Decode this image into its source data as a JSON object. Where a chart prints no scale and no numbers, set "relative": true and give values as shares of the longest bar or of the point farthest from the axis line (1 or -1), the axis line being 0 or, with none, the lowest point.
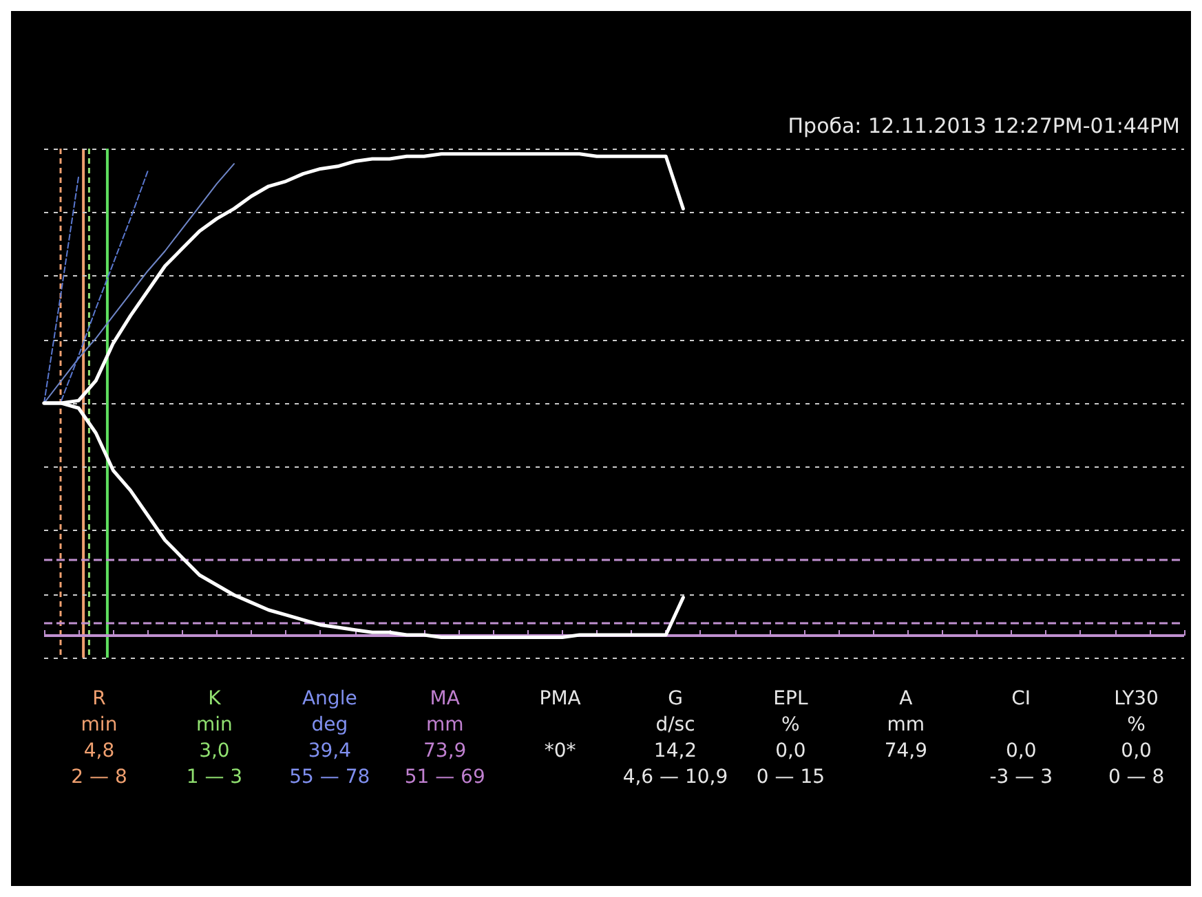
{
  "chart_data": {
    "type": "line",
    "title": "Проба: 12.11.2013 12:27PM-01:44PM",
    "relative": true,
    "grid": "y",
    "marker": "none",
    "categories": [
      null,
      null,
      null,
      null,
      null,
      null,
      null,
      null,
      null,
      null,
      null,
      null,
      null,
      null,
      null,
      null,
      null,
      null,
      null,
      null,
      null,
      null,
      null,
      null,
      null,
      null,
      null,
      null,
      null,
      null,
      null,
      null,
      null,
      null,
      null,
      null,
      null,
      null,
      null,
      null,
      null,
      null,
      null,
      null,
      null,
      null,
      null,
      null,
      null,
      null,
      null,
      null,
      null,
      null,
      null,
      null,
      null,
      null,
      null,
      null,
      null,
      null,
      null,
      null,
      null,
      null,
      null
    ],
    "series": [
      {
        "color": "#ffffff",
        "values": [
          0,
          0,
          0.01,
          0.09,
          0.24,
          0.35,
          0.45,
          0.55,
          0.62,
          0.69,
          0.74,
          0.78,
          0.83,
          0.87,
          0.89,
          0.92,
          0.94,
          0.95,
          0.97,
          0.98,
          0.98,
          0.99,
          0.99,
          1,
          1,
          1,
          1,
          1,
          1,
          1,
          1,
          1,
          0.99,
          0.99,
          0.99,
          0.99,
          0.99,
          0.78,
          null,
          null,
          null,
          null,
          null,
          null,
          null,
          null,
          null,
          null,
          null,
          null,
          null,
          null,
          null,
          null,
          null,
          null,
          null,
          null,
          null,
          null,
          null,
          null,
          null,
          null,
          null,
          null,
          null
        ]
      },
      {
        "color": "#ffffff",
        "values": [
          0,
          0,
          -0.02,
          -0.12,
          -0.27,
          -0.35,
          -0.45,
          -0.55,
          -0.62,
          -0.69,
          -0.73,
          -0.77,
          -0.8,
          -0.83,
          -0.85,
          -0.87,
          -0.89,
          -0.9,
          -0.91,
          -0.92,
          -0.92,
          -0.93,
          -0.93,
          -0.94,
          -0.94,
          -0.94,
          -0.94,
          -0.94,
          -0.94,
          -0.94,
          -0.94,
          -0.93,
          -0.93,
          -0.93,
          -0.93,
          -0.93,
          -0.93,
          -0.78,
          null,
          null,
          null,
          null,
          null,
          null,
          null,
          null,
          null,
          null,
          null,
          null,
          null,
          null,
          null,
          null,
          null,
          null,
          null,
          null,
          null,
          null,
          null,
          null,
          null,
          null,
          null,
          null,
          null
        ]
      },
      {
        "color": "#6f86c8",
        "line_style": "solid",
        "values": [
          0,
          0.09,
          0.18,
          0.26,
          0.35,
          0.44,
          0.53,
          0.61,
          0.7,
          0.79,
          0.88,
          0.96,
          null,
          null,
          null,
          null,
          null,
          null,
          null,
          null,
          null,
          null,
          null,
          null,
          null,
          null,
          null,
          null,
          null,
          null,
          null,
          null,
          null,
          null,
          null,
          null,
          null,
          null,
          null,
          null,
          null,
          null,
          null,
          null,
          null,
          null,
          null,
          null,
          null,
          null,
          null,
          null,
          null,
          null,
          null,
          null,
          null,
          null,
          null,
          null,
          null,
          null,
          null,
          null,
          null,
          null,
          null
        ]
      },
      {
        "color": "#5a78d0",
        "line_style": "dashed",
        "values": [
          null,
          0.01,
          0.19,
          0.38,
          0.56,
          0.74,
          0.93,
          null,
          null,
          null,
          null,
          null,
          null,
          null,
          null,
          null,
          null,
          null,
          null,
          null,
          null,
          null,
          null,
          null,
          null,
          null,
          null,
          null,
          null,
          null,
          null,
          null,
          null,
          null,
          null,
          null,
          null,
          null,
          null,
          null,
          null,
          null,
          null,
          null,
          null,
          null,
          null,
          null,
          null,
          null,
          null,
          null,
          null,
          null,
          null,
          null,
          null,
          null,
          null,
          null,
          null,
          null,
          null,
          null,
          null,
          null,
          null
        ]
      },
      {
        "color": "#5a78d0",
        "line_style": "dashed",
        "values": [
          0,
          0.45,
          0.91,
          null,
          null,
          null,
          null,
          null,
          null,
          null,
          null,
          null,
          null,
          null,
          null,
          null,
          null,
          null,
          null,
          null,
          null,
          null,
          null,
          null,
          null,
          null,
          null,
          null,
          null,
          null,
          null,
          null,
          null,
          null,
          null,
          null,
          null,
          null,
          null,
          null,
          null,
          null,
          null,
          null,
          null,
          null,
          null,
          null,
          null,
          null,
          null,
          null,
          null,
          null,
          null,
          null,
          null,
          null,
          null,
          null,
          null,
          null,
          null,
          null,
          null,
          null,
          null
        ]
      }
    ],
    "ref_lines": [
      {
        "axis": "y",
        "value": -0.63,
        "color": "#c090d0",
        "line_style": "dashed"
      },
      {
        "axis": "y",
        "value": -0.88,
        "color": "#c090d0",
        "line_style": "dashed"
      },
      {
        "axis": "y",
        "value": -0.93,
        "color": "#c090d0",
        "line_style": "solid"
      }
    ],
    "annotations": [
      "R\nmin\n4,8\n2 — 8",
      "K\nmin\n3,0\n1 — 3",
      "Angle\ndeg\n39,4\n55 — 78",
      "MA\nmm\n73,9\n51 — 69",
      "PMA\n\n*0*",
      "G\nd/sc\n14,2\n4,6 — 10,9",
      "EPL\n%\n0,0\n0 — 15",
      "A\nmm\n74,9",
      "CI\n\n0,0\n-3 — 3",
      "LY30\n%\n0,0\n0 — 8"
    ]
  }
}
